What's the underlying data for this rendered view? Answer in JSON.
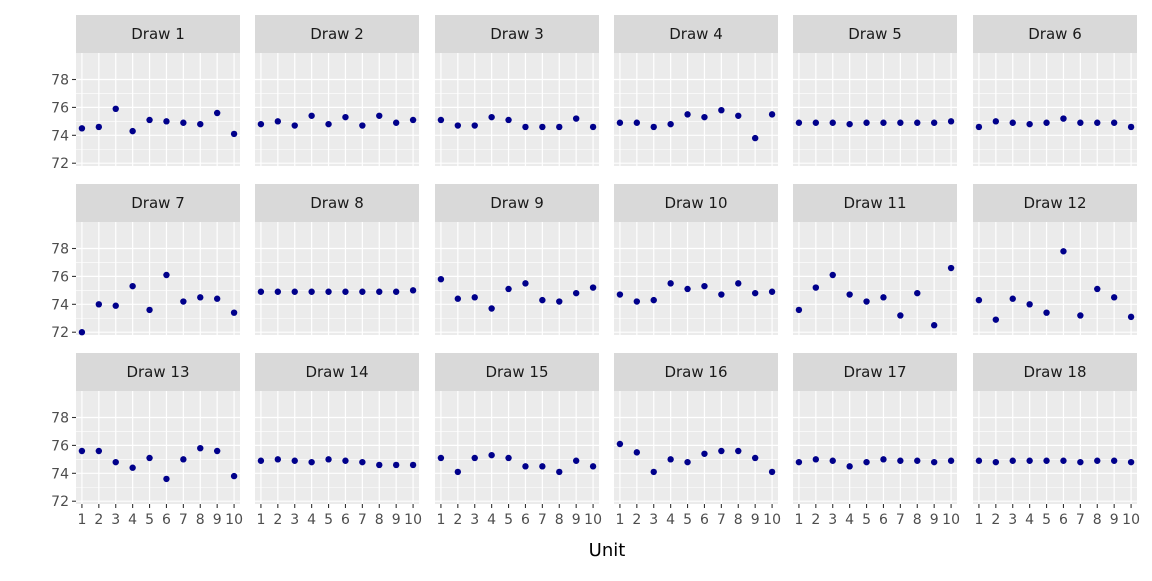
{
  "chart_data": {
    "type": "scatter",
    "layout": "facet_wrap",
    "ncol": 6,
    "xlabel": "Unit",
    "ylabel": "",
    "x": [
      1,
      2,
      3,
      4,
      5,
      6,
      7,
      8,
      9,
      10
    ],
    "x_tick_labels": [
      "1",
      "2",
      "3",
      "4",
      "5",
      "6",
      "7",
      "8",
      "9",
      "10"
    ],
    "y_ticks": [
      72,
      74,
      76,
      78
    ],
    "y_tick_labels": [
      "72",
      "74",
      "76",
      "78"
    ],
    "xlim": [
      0.65,
      10.35
    ],
    "ylim": [
      71.8,
      79.9
    ],
    "grid": true,
    "point_color": "#00008B",
    "panel_background": "#EBEBEB",
    "strip_background": "#D9D9D9",
    "series": [
      {
        "name": "Draw 1",
        "values": [
          74.5,
          74.6,
          75.9,
          74.3,
          75.1,
          75.0,
          74.9,
          74.8,
          75.6,
          74.1
        ]
      },
      {
        "name": "Draw 2",
        "values": [
          74.8,
          75.0,
          74.7,
          75.4,
          74.8,
          75.3,
          74.7,
          75.4,
          74.9,
          75.1
        ]
      },
      {
        "name": "Draw 3",
        "values": [
          75.1,
          74.7,
          74.7,
          75.3,
          75.1,
          74.6,
          74.6,
          74.6,
          75.2,
          74.6
        ]
      },
      {
        "name": "Draw 4",
        "values": [
          74.9,
          74.9,
          74.6,
          74.8,
          75.5,
          75.3,
          75.8,
          75.4,
          73.8,
          75.5
        ]
      },
      {
        "name": "Draw 5",
        "values": [
          74.9,
          74.9,
          74.9,
          74.8,
          74.9,
          74.9,
          74.9,
          74.9,
          74.9,
          75.0
        ]
      },
      {
        "name": "Draw 6",
        "values": [
          74.6,
          75.0,
          74.9,
          74.8,
          74.9,
          75.2,
          74.9,
          74.9,
          74.9,
          74.6
        ]
      },
      {
        "name": "Draw 7",
        "values": [
          72.0,
          74.0,
          73.9,
          75.3,
          73.6,
          76.1,
          74.2,
          74.5,
          74.4,
          73.4
        ]
      },
      {
        "name": "Draw 8",
        "values": [
          74.9,
          74.9,
          74.9,
          74.9,
          74.9,
          74.9,
          74.9,
          74.9,
          74.9,
          75.0
        ]
      },
      {
        "name": "Draw 9",
        "values": [
          75.8,
          74.4,
          74.5,
          73.7,
          75.1,
          75.5,
          74.3,
          74.2,
          74.8,
          75.2
        ]
      },
      {
        "name": "Draw 10",
        "values": [
          74.7,
          74.2,
          74.3,
          75.5,
          75.1,
          75.3,
          74.7,
          75.5,
          74.8,
          74.9
        ]
      },
      {
        "name": "Draw 11",
        "values": [
          73.6,
          75.2,
          76.1,
          74.7,
          74.2,
          74.5,
          73.2,
          74.8,
          72.5,
          76.6
        ]
      },
      {
        "name": "Draw 12",
        "values": [
          74.3,
          72.9,
          74.4,
          74.0,
          73.4,
          77.8,
          73.2,
          75.1,
          74.5,
          73.1
        ]
      },
      {
        "name": "Draw 13",
        "values": [
          75.6,
          75.6,
          74.8,
          74.4,
          75.1,
          73.6,
          75.0,
          75.8,
          75.6,
          73.8
        ]
      },
      {
        "name": "Draw 14",
        "values": [
          74.9,
          75.0,
          74.9,
          74.8,
          75.0,
          74.9,
          74.8,
          74.6,
          74.6,
          74.6
        ]
      },
      {
        "name": "Draw 15",
        "values": [
          75.1,
          74.1,
          75.1,
          75.3,
          75.1,
          74.5,
          74.5,
          74.1,
          74.9,
          74.5
        ]
      },
      {
        "name": "Draw 16",
        "values": [
          76.1,
          75.5,
          74.1,
          75.0,
          74.8,
          75.4,
          75.6,
          75.6,
          75.1,
          74.1
        ]
      },
      {
        "name": "Draw 17",
        "values": [
          74.8,
          75.0,
          74.9,
          74.5,
          74.8,
          75.0,
          74.9,
          74.9,
          74.8,
          74.9
        ]
      },
      {
        "name": "Draw 18",
        "values": [
          74.9,
          74.8,
          74.9,
          74.9,
          74.9,
          74.9,
          74.8,
          74.9,
          74.9,
          74.8
        ]
      }
    ]
  }
}
